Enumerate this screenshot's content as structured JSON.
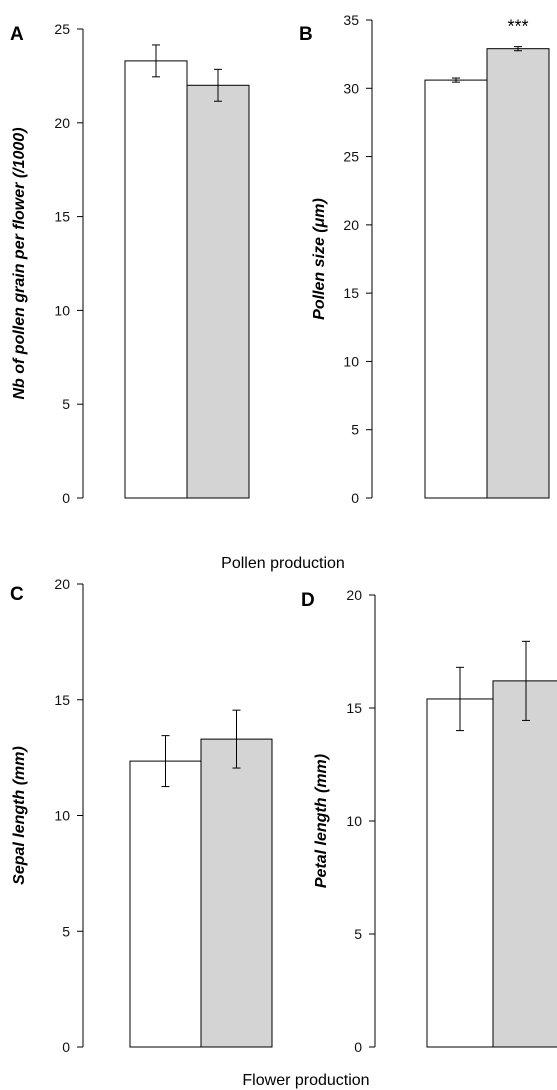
{
  "colors": {
    "control_bar": "#ffffff",
    "treatment_bar": "#d4d4d4",
    "stroke": "#000000"
  },
  "captions": {
    "top": "Pollen production",
    "bottom": "Flower production"
  },
  "chart_data": [
    {
      "type": "bar",
      "panel": "A",
      "title": "",
      "xlabel": "",
      "ylabel": "Nb of pollen grain per flower (/1000)",
      "ylim": [
        0,
        25
      ],
      "yticks": [
        0,
        5,
        10,
        15,
        20,
        25
      ],
      "categories": [
        "",
        ""
      ],
      "values": [
        23.3,
        22.0
      ],
      "errors": [
        0.85,
        0.85
      ],
      "significance": ""
    },
    {
      "type": "bar",
      "panel": "B",
      "title": "",
      "xlabel": "",
      "ylabel": "Pollen size (μm)",
      "ylim": [
        0,
        35
      ],
      "yticks": [
        0,
        5,
        10,
        15,
        20,
        25,
        30,
        35
      ],
      "categories": [
        "",
        ""
      ],
      "values": [
        30.6,
        32.9
      ],
      "errors": [
        0.15,
        0.15
      ],
      "significance": "***"
    },
    {
      "type": "bar",
      "panel": "C",
      "title": "",
      "xlabel": "",
      "ylabel": "Sepal length (mm)",
      "ylim": [
        0,
        20
      ],
      "yticks": [
        0,
        5,
        10,
        15,
        20
      ],
      "categories": [
        "",
        ""
      ],
      "values": [
        12.35,
        13.3
      ],
      "errors": [
        1.1,
        1.25
      ],
      "significance": ""
    },
    {
      "type": "bar",
      "panel": "D",
      "title": "",
      "xlabel": "",
      "ylabel": "Petal length (mm)",
      "ylim": [
        0,
        20
      ],
      "yticks": [
        0,
        5,
        10,
        15,
        20
      ],
      "categories": [
        "",
        ""
      ],
      "values": [
        15.4,
        16.2
      ],
      "errors": [
        1.4,
        1.75
      ],
      "significance": ""
    }
  ]
}
